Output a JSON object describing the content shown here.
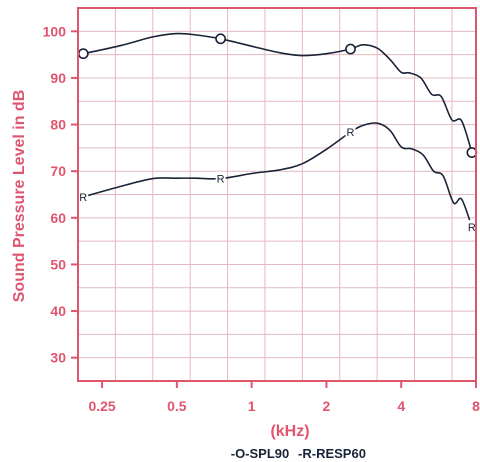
{
  "chart_data": {
    "type": "line",
    "title": "",
    "xlabel": "(kHz)",
    "ylabel": "Sound Pressure Level in dB",
    "x_scale": "log2",
    "xlim": [
      0.2,
      8
    ],
    "ylim": [
      25,
      105
    ],
    "x_ticks": [
      0.25,
      0.5,
      1,
      2,
      4,
      8
    ],
    "x_tick_labels": [
      "0.25",
      "0.5",
      "1",
      "2",
      "4",
      "8"
    ],
    "y_ticks": [
      30,
      40,
      50,
      60,
      70,
      80,
      90,
      100
    ],
    "y_tick_labels": [
      "30",
      "40",
      "50",
      "60",
      "70",
      "80",
      "90",
      "100"
    ],
    "grid": true,
    "legend_position": "bottom",
    "colors": {
      "axis": "#e0556e",
      "grid": "#e3b8bf",
      "line": "#1a2438"
    },
    "series": [
      {
        "name": "SPL90",
        "legend_label": "-O-SPL90",
        "marker": "O",
        "marker_x": [
          0.21,
          0.75,
          2.5,
          7.7
        ],
        "marker_y": [
          95.2,
          98.4,
          96.2,
          74.0
        ],
        "x": [
          0.21,
          0.3,
          0.4,
          0.5,
          0.6,
          0.75,
          1.0,
          1.3,
          1.6,
          2.0,
          2.5,
          2.8,
          3.2,
          3.6,
          4.0,
          4.3,
          4.8,
          5.3,
          5.8,
          6.4,
          7.0,
          7.7
        ],
        "y": [
          95.2,
          97.0,
          98.8,
          99.5,
          99.2,
          98.4,
          96.8,
          95.4,
          94.8,
          95.2,
          96.2,
          97.1,
          96.4,
          94.0,
          91.2,
          91.1,
          90.0,
          86.5,
          86.0,
          81.0,
          80.8,
          74.0
        ]
      },
      {
        "name": "RESP60",
        "legend_label": "-R-RESP60",
        "marker": "R",
        "marker_x": [
          0.21,
          0.75,
          2.5,
          7.7
        ],
        "marker_y": [
          64.5,
          68.4,
          78.4,
          58.0
        ],
        "x": [
          0.21,
          0.3,
          0.4,
          0.5,
          0.6,
          0.75,
          1.0,
          1.3,
          1.6,
          2.0,
          2.5,
          2.8,
          3.2,
          3.6,
          4.0,
          4.4,
          4.9,
          5.4,
          5.9,
          6.5,
          7.0,
          7.7
        ],
        "y": [
          64.5,
          66.8,
          68.4,
          68.5,
          68.5,
          68.4,
          69.5,
          70.3,
          71.6,
          74.7,
          78.4,
          79.8,
          80.3,
          78.8,
          75.2,
          74.8,
          73.5,
          70.0,
          69.0,
          63.2,
          64.0,
          58.0
        ]
      }
    ]
  }
}
